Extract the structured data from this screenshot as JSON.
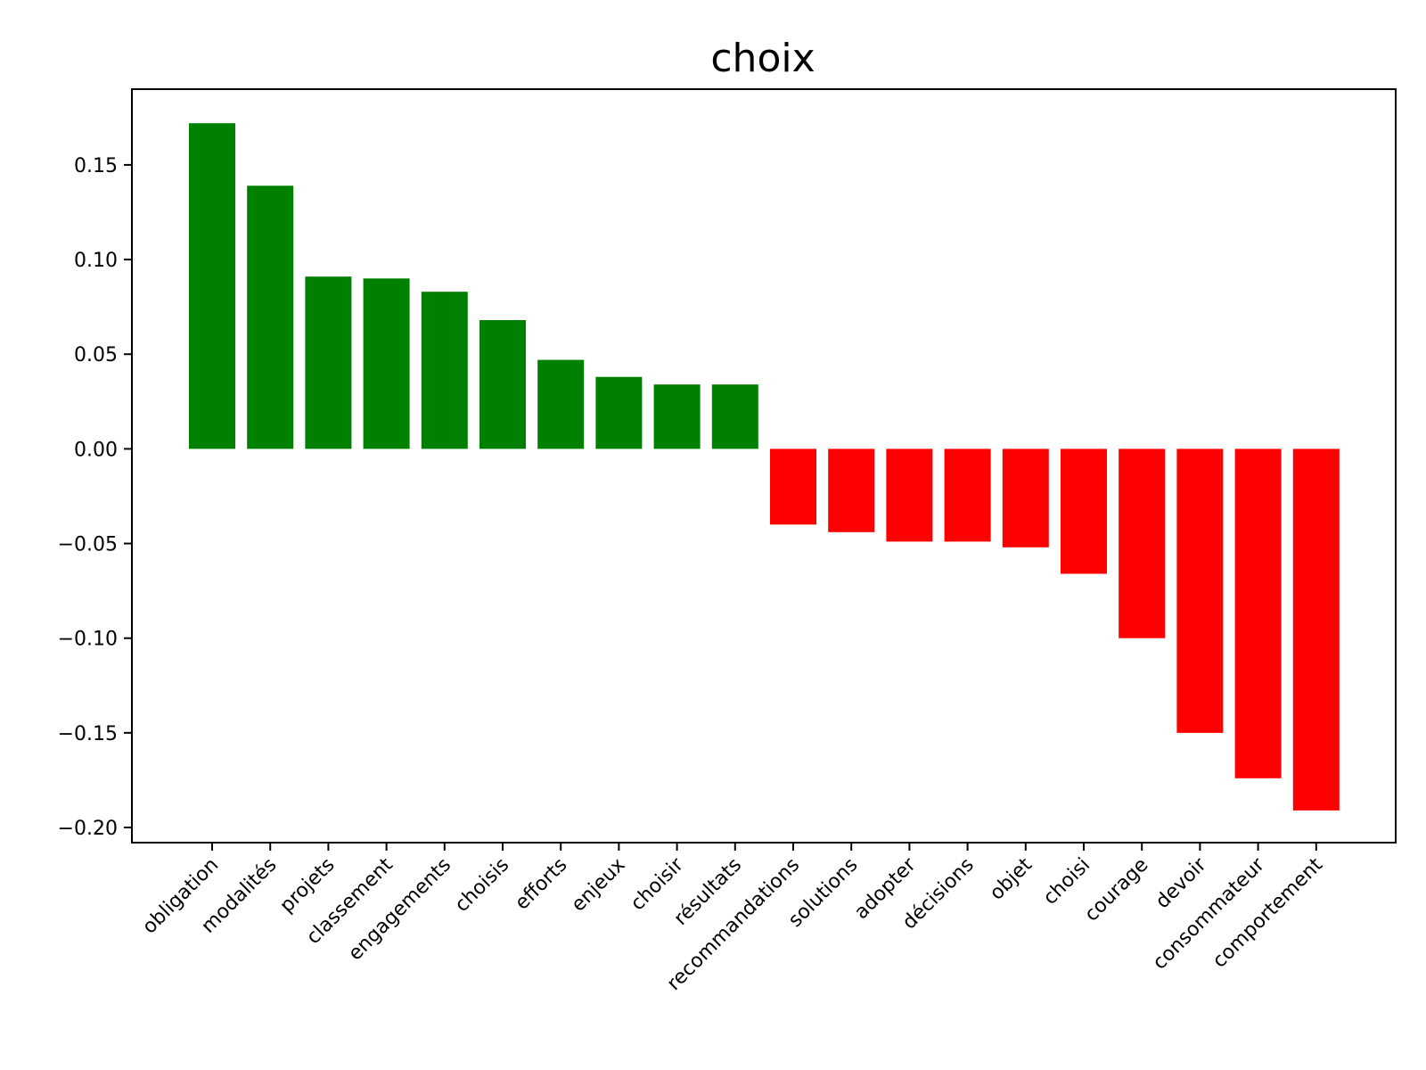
{
  "chart_data": {
    "type": "bar",
    "title": "choix",
    "xlabel": "",
    "ylabel": "",
    "categories": [
      "obligation",
      "modalités",
      "projets",
      "classement",
      "engagements",
      "choisis",
      "efforts",
      "enjeux",
      "choisir",
      "résultats",
      "recommandations",
      "solutions",
      "adopter",
      "décisions",
      "objet",
      "choisi",
      "courage",
      "devoir",
      "consommateur",
      "comportement"
    ],
    "values": [
      0.172,
      0.139,
      0.091,
      0.09,
      0.083,
      0.068,
      0.047,
      0.038,
      0.034,
      0.034,
      -0.04,
      -0.044,
      -0.049,
      -0.049,
      -0.052,
      -0.066,
      -0.1,
      -0.15,
      -0.174,
      -0.191
    ],
    "ylim": [
      -0.208,
      0.19
    ],
    "yticks": [
      0.15,
      0.1,
      0.05,
      0.0,
      -0.05,
      -0.1,
      -0.15,
      -0.2
    ],
    "ytick_labels": [
      "0.15",
      "0.10",
      "0.05",
      "0.00",
      "−0.05",
      "−0.10",
      "−0.15",
      "−0.20"
    ],
    "positive_color": "#008000",
    "negative_color": "#ff0000",
    "grid": false,
    "legend": "none"
  }
}
